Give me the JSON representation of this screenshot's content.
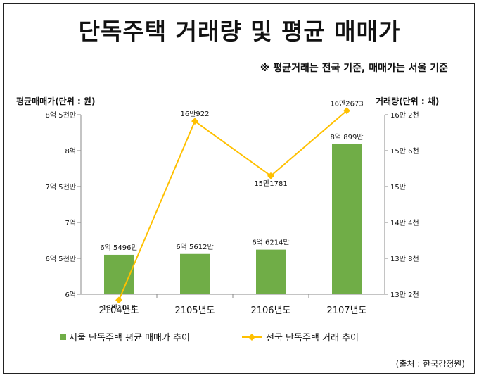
{
  "title": "단독주택 거래량 및 평균 매매가",
  "subtitle": "※ 평균거래는 전국 기준, 매매가는 서울 기준",
  "source": "(출처 : 한국감정원)",
  "chart_data": {
    "type": "bar+line",
    "ylabel_left": "평균매매가(단위 : 원)",
    "ylabel_right": "거래량(단위 : 채)",
    "categories": [
      "2104년도",
      "2105년도",
      "2106년도",
      "2107년도"
    ],
    "left_axis": {
      "ylim": [
        600000000,
        850000000
      ],
      "ticks": [
        600000000,
        650000000,
        700000000,
        750000000,
        800000000,
        850000000
      ],
      "tick_labels": [
        "6억",
        "6억 5천만",
        "7억",
        "7억 5천만",
        "8억",
        "8억 5천만"
      ]
    },
    "right_axis": {
      "ylim": [
        132000,
        162000
      ],
      "ticks": [
        132000,
        138000,
        144000,
        150000,
        156000,
        162000
      ],
      "tick_labels": [
        "13만 2천",
        "13만 8천",
        "14만 4천",
        "15만",
        "15만 6천",
        "16만 2천"
      ]
    },
    "series": [
      {
        "name": "서울 단독주택 평균 매매가 추이",
        "type": "bar",
        "axis": "left",
        "color": "#70AD47",
        "values": [
          654960000,
          656120000,
          662140000,
          808990000
        ],
        "labels": [
          "6억 5496만",
          "6억 5612만",
          "6억 6214만",
          "8억 899만"
        ]
      },
      {
        "name": "전국 단독주택 거래 추이",
        "type": "line",
        "axis": "right",
        "color": "#FFC000",
        "values": [
          131018,
          160922,
          151781,
          162673
        ],
        "labels": [
          "13만1018",
          "16만922",
          "15만1781",
          "16만2673"
        ]
      }
    ],
    "grid": false,
    "legend": "bottom"
  }
}
